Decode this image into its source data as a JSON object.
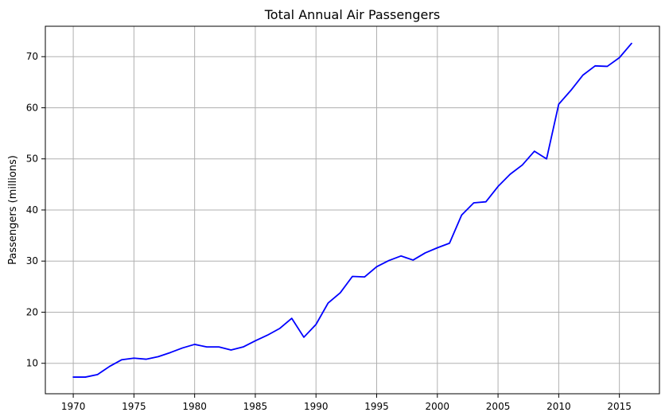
{
  "chart_data": {
    "type": "line",
    "title": "Total Annual Air Passengers",
    "xlabel": "",
    "ylabel": "Passengers (millions)",
    "xlim": [
      1967.7,
      2018.3
    ],
    "ylim": [
      4.04,
      75.95
    ],
    "grid": true,
    "colors": {
      "line": "#0000ff",
      "grid": "#b0b0b0",
      "axis": "#000000"
    },
    "x_ticks": [
      1970,
      1975,
      1980,
      1985,
      1990,
      1995,
      2000,
      2005,
      2010,
      2015
    ],
    "x_tick_labels": [
      "1970",
      "1975",
      "1980",
      "1985",
      "1990",
      "1995",
      "2000",
      "2005",
      "2010",
      "2015"
    ],
    "y_ticks": [
      10,
      20,
      30,
      40,
      50,
      60,
      70
    ],
    "y_tick_labels": [
      "10",
      "20",
      "30",
      "40",
      "50",
      "60",
      "70"
    ],
    "series": [
      {
        "x": [
          1970,
          1971,
          1972,
          1973,
          1974,
          1975,
          1976,
          1977,
          1978,
          1979,
          1980,
          1981,
          1982,
          1983,
          1984,
          1985,
          1986,
          1987,
          1988,
          1989,
          1990,
          1991,
          1992,
          1993,
          1994,
          1995,
          1996,
          1997,
          1998,
          1999,
          2000,
          2001,
          2002,
          2003,
          2004,
          2005,
          2006,
          2007,
          2008,
          2009,
          2010,
          2011,
          2012,
          2013,
          2014,
          2015,
          2016
        ],
        "values": [
          7.3,
          7.3,
          7.8,
          9.4,
          10.7,
          11.0,
          10.8,
          11.3,
          12.1,
          13.0,
          13.7,
          13.2,
          13.2,
          12.6,
          13.2,
          14.4,
          15.5,
          16.8,
          18.8,
          15.1,
          17.6,
          21.8,
          23.8,
          27.0,
          26.9,
          28.9,
          30.1,
          31.0,
          30.2,
          31.6,
          32.6,
          33.5,
          39.0,
          41.4,
          41.6,
          44.6,
          47.0,
          48.8,
          51.5,
          50.0,
          60.7,
          63.4,
          66.4,
          68.2,
          68.1,
          69.8,
          72.6
        ]
      }
    ]
  }
}
